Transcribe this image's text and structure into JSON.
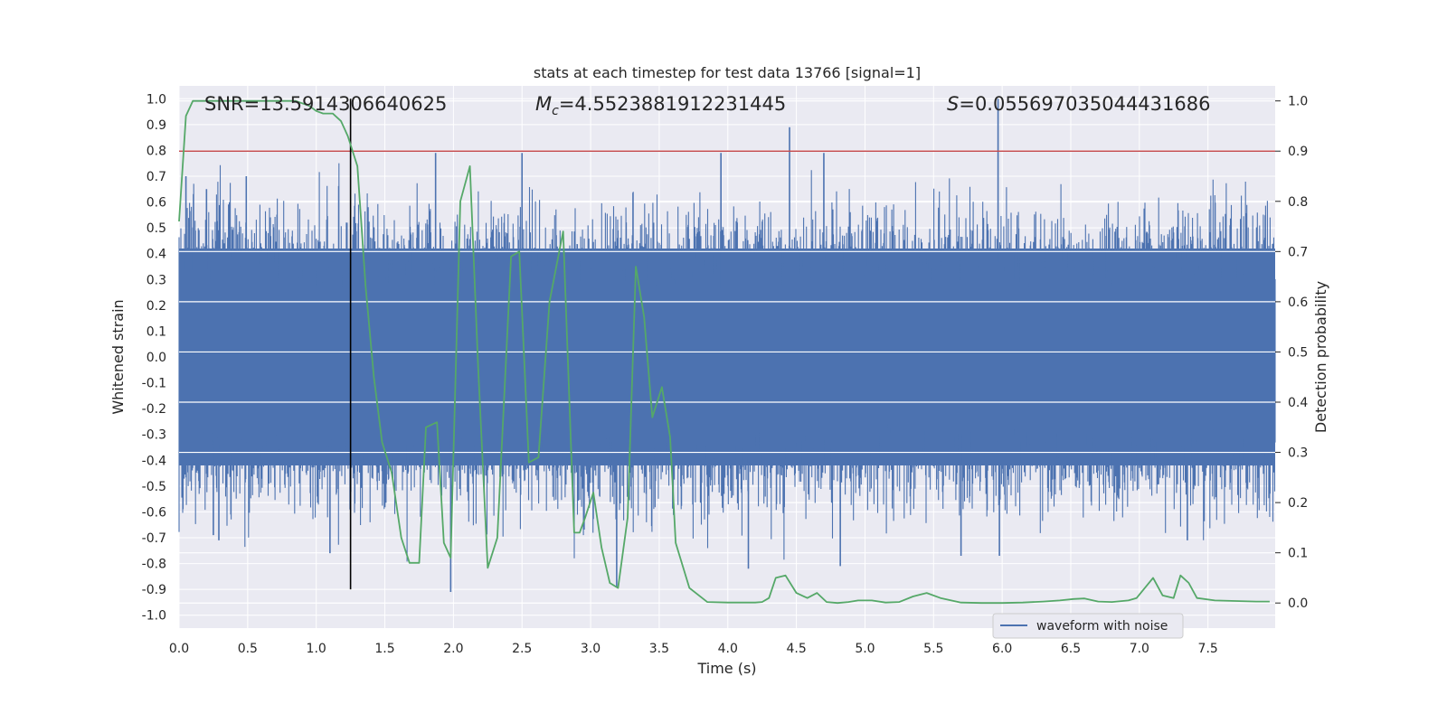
{
  "chart_data": {
    "type": "line",
    "title": "stats at each timestep for test data 13766 [signal=1]",
    "xlabel": "Time (s)",
    "ylabel_left": "Whitened strain",
    "ylabel_right": "Detection probability",
    "xlim": [
      0.0,
      7.99
    ],
    "ylim_left": [
      -1.05,
      1.05
    ],
    "ylim_right": [
      -0.05,
      1.03
    ],
    "x_ticks": [
      "0.0",
      "0.5",
      "1.0",
      "1.5",
      "2.0",
      "2.5",
      "3.0",
      "3.5",
      "4.0",
      "4.5",
      "5.0",
      "5.5",
      "6.0",
      "6.5",
      "7.0",
      "7.5"
    ],
    "y_ticks_left": [
      "1.0",
      "0.9",
      "0.8",
      "0.7",
      "0.6",
      "0.5",
      "0.4",
      "0.3",
      "0.2",
      "0.1",
      "0.0",
      "-0.1",
      "-0.2",
      "-0.3",
      "-0.4",
      "-0.5",
      "-0.6",
      "-0.7",
      "-0.8",
      "-0.9",
      "-1.0"
    ],
    "y_ticks_right": [
      "1.0",
      "0.9",
      "0.8",
      "0.7",
      "0.6",
      "0.5",
      "0.4",
      "0.3",
      "0.2",
      "0.1",
      "0.0"
    ],
    "grid": true,
    "legend": {
      "placement": "lower-right",
      "entries": [
        "waveform with noise"
      ]
    },
    "annotations": {
      "snr": "SNR=13.5914306640625",
      "mc_symbol": "M",
      "mc_sub": "c",
      "mc_value": "=4.5523881912231445",
      "s_symbol": "S",
      "s_value": "=0.055697035044431686"
    },
    "threshold_line": {
      "axis": "right",
      "y": 0.9,
      "color": "#c44e52"
    },
    "event_line": {
      "x": 1.25,
      "y_range": [
        -0.9,
        1.0
      ],
      "color": "#000000"
    },
    "series": [
      {
        "name": "waveform with noise",
        "axis": "left",
        "color": "#4c72b0",
        "x_range": [
          0.0,
          7.99
        ],
        "noise_envelope": {
          "dense_band": 0.42,
          "typical_peak": 0.6,
          "typical_trough": -0.65
        },
        "notable_peaks": [
          {
            "x": 0.05,
            "y": 0.7
          },
          {
            "x": 0.2,
            "y": 0.65
          },
          {
            "x": 0.49,
            "y": 0.7
          },
          {
            "x": 0.29,
            "y": -0.71
          },
          {
            "x": 0.25,
            "y": -0.69
          },
          {
            "x": 1.1,
            "y": -0.76
          },
          {
            "x": 1.87,
            "y": 0.79
          },
          {
            "x": 1.98,
            "y": -0.91
          },
          {
            "x": 2.5,
            "y": 0.79
          },
          {
            "x": 3.19,
            "y": -0.89
          },
          {
            "x": 3.95,
            "y": 0.79
          },
          {
            "x": 4.15,
            "y": -0.82
          },
          {
            "x": 4.45,
            "y": 0.89
          },
          {
            "x": 4.7,
            "y": 0.79
          },
          {
            "x": 4.82,
            "y": -0.81
          },
          {
            "x": 5.97,
            "y": 1.0
          },
          {
            "x": 5.98,
            "y": -0.77
          },
          {
            "x": 5.7,
            "y": -0.77
          },
          {
            "x": 7.35,
            "y": -0.71
          }
        ]
      },
      {
        "name": "",
        "axis": "right",
        "color": "#55a868",
        "x": [
          0.0,
          0.05,
          0.1,
          0.2,
          0.3,
          0.5,
          0.7,
          0.85,
          0.95,
          1.0,
          1.05,
          1.12,
          1.18,
          1.23,
          1.3,
          1.36,
          1.42,
          1.48,
          1.55,
          1.62,
          1.68,
          1.75,
          1.8,
          1.88,
          1.93,
          1.98,
          2.05,
          2.12,
          2.18,
          2.25,
          2.32,
          2.42,
          2.48,
          2.55,
          2.62,
          2.7,
          2.8,
          2.88,
          2.92,
          2.96,
          3.02,
          3.08,
          3.14,
          3.2,
          3.27,
          3.33,
          3.39,
          3.45,
          3.52,
          3.58,
          3.62,
          3.72,
          3.85,
          4.0,
          4.1,
          4.2,
          4.25,
          4.3,
          4.35,
          4.42,
          4.5,
          4.58,
          4.65,
          4.72,
          4.8,
          4.88,
          4.95,
          5.05,
          5.15,
          5.25,
          5.35,
          5.45,
          5.55,
          5.7,
          5.85,
          6.0,
          6.15,
          6.3,
          6.42,
          6.52,
          6.6,
          6.7,
          6.8,
          6.92,
          6.98,
          7.04,
          7.1,
          7.17,
          7.25,
          7.3,
          7.36,
          7.42,
          7.55,
          7.7,
          7.85,
          7.95
        ],
        "y": [
          0.76,
          0.97,
          1.0,
          1.0,
          1.0,
          1.0,
          1.0,
          1.0,
          0.99,
          0.98,
          0.975,
          0.975,
          0.96,
          0.93,
          0.87,
          0.63,
          0.45,
          0.32,
          0.26,
          0.13,
          0.08,
          0.08,
          0.35,
          0.36,
          0.12,
          0.09,
          0.8,
          0.87,
          0.47,
          0.07,
          0.13,
          0.69,
          0.7,
          0.28,
          0.29,
          0.6,
          0.74,
          0.14,
          0.14,
          0.17,
          0.22,
          0.11,
          0.04,
          0.03,
          0.17,
          0.67,
          0.57,
          0.37,
          0.43,
          0.33,
          0.12,
          0.03,
          0.002,
          0.001,
          0.001,
          0.001,
          0.002,
          0.01,
          0.05,
          0.055,
          0.02,
          0.01,
          0.02,
          0.002,
          0.0,
          0.002,
          0.005,
          0.005,
          0.001,
          0.002,
          0.013,
          0.02,
          0.01,
          0.001,
          0.0,
          0.0,
          0.001,
          0.003,
          0.005,
          0.008,
          0.009,
          0.003,
          0.002,
          0.005,
          0.01,
          0.03,
          0.05,
          0.015,
          0.01,
          0.055,
          0.04,
          0.01,
          0.005,
          0.004,
          0.003,
          0.003
        ]
      }
    ]
  }
}
